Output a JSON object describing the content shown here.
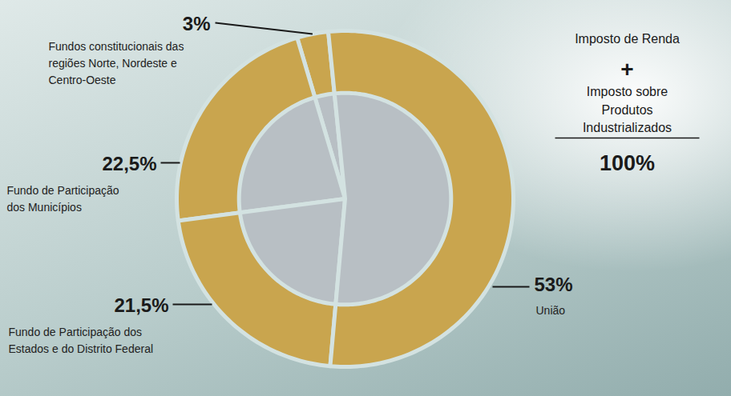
{
  "chart_data": {
    "type": "pie",
    "categories": [
      "Fundos constitucionais das regiões Norte, Nordeste e Centro-Oeste",
      "Fundo de Participação dos Municípios",
      "Fundo de Participação dos Estados e do Distrito Federal",
      "União"
    ],
    "values": [
      3,
      22.5,
      21.5,
      53
    ],
    "value_labels": [
      "3%",
      "22,5%",
      "21,5%",
      "53%"
    ],
    "colors": [
      "#c9a54e",
      "#c9a54e",
      "#c9a54e",
      "#c9a54e"
    ],
    "data_labels": true,
    "tick_labels": false,
    "annotations": [
      "Imposto de Renda",
      "+",
      "Imposto sobre Produtos Industrializados"
    ],
    "total": {
      "value": 100,
      "label": "100%"
    }
  }
}
